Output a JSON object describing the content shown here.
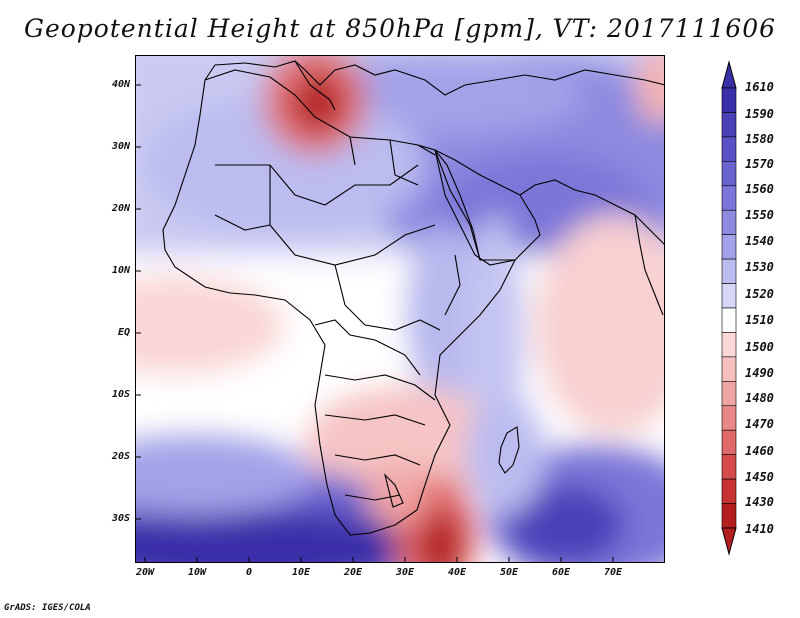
{
  "title": "Geopotential Height at 850hPa [gpm], VT: 2017111606",
  "credit": "GrADS: IGES/COLA",
  "lat_ticks": [
    "40N",
    "30N",
    "20N",
    "10N",
    "EQ",
    "10S",
    "20S",
    "30S"
  ],
  "lon_ticks": [
    "20W",
    "10W",
    "0",
    "10E",
    "20E",
    "30E",
    "40E",
    "50E",
    "60E",
    "70E"
  ],
  "colorbar": {
    "levels": [
      "1610",
      "1590",
      "1580",
      "1570",
      "1560",
      "1550",
      "1540",
      "1530",
      "1520",
      "1510",
      "1500",
      "1490",
      "1480",
      "1470",
      "1460",
      "1450",
      "1430",
      "1410"
    ],
    "colors": [
      "#3a2fa8",
      "#4a40b8",
      "#5a52c4",
      "#6a64cf",
      "#7b76d8",
      "#8d8ae0",
      "#a3a2e8",
      "#bcbcf0",
      "#d6d6f7",
      "#ffffff",
      "#fbd8d8",
      "#f6c0c0",
      "#f0a5a5",
      "#e98888",
      "#e06a6a",
      "#d64b4b",
      "#c73232",
      "#b31e1e"
    ]
  }
}
